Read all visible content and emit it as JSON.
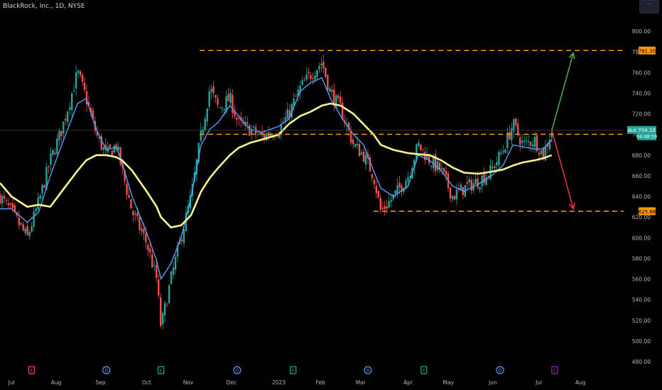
{
  "header": {
    "title": "BlackRock, Inc., 1D, NYSE"
  },
  "ticker": "BLK",
  "price_badge": {
    "symbol": "BLK",
    "price": "704.10",
    "countdown": "04:48:59"
  },
  "level_tags": [
    "781.35",
    "700.26",
    "625.68"
  ],
  "colors": {
    "background": "#000000",
    "up": "#26a69a",
    "down": "#ef5350",
    "ema_fast": "#5b9cf6",
    "ma_slow": "#f8f48c",
    "levels": "#ff9800",
    "arrow_up": "#4caf50",
    "arrow_down": "#f23645",
    "axis_text": "#b2b5be"
  },
  "event_icons": [
    {
      "date": "2022-07-15",
      "kind": "earnings",
      "label": "E"
    },
    {
      "date": "2022-09-05",
      "kind": "dividend",
      "label": "D"
    },
    {
      "date": "2022-10-13",
      "kind": "earnings",
      "label": "E"
    },
    {
      "date": "2022-12-05",
      "kind": "dividend",
      "label": "D"
    },
    {
      "date": "2023-01-13",
      "kind": "earnings",
      "label": "E"
    },
    {
      "date": "2023-03-06",
      "kind": "dividend",
      "label": "D"
    },
    {
      "date": "2023-04-14",
      "kind": "earnings",
      "label": "E"
    },
    {
      "date": "2023-06-06",
      "kind": "dividend",
      "label": "D"
    },
    {
      "date": "2023-07-14",
      "kind": "earnings-upcoming",
      "label": "E"
    }
  ],
  "chart_data": {
    "type": "candlestick",
    "title": "BlackRock, Inc., 1D, NYSE",
    "x_range": [
      "2022-06-23",
      "2023-08-31"
    ],
    "ylim": [
      480,
      820
    ],
    "y_ticks": [
      480,
      500,
      520,
      540,
      560,
      580,
      600,
      620,
      640,
      660,
      680,
      700,
      720,
      740,
      760,
      780,
      800
    ],
    "x_ticks": [
      {
        "date": "2022-07-01",
        "label": "Jul"
      },
      {
        "date": "2022-08-01",
        "label": "Aug"
      },
      {
        "date": "2022-09-01",
        "label": "Sep"
      },
      {
        "date": "2022-10-03",
        "label": "Oct"
      },
      {
        "date": "2022-11-01",
        "label": "Nov"
      },
      {
        "date": "2022-12-01",
        "label": "Dec"
      },
      {
        "date": "2023-01-03",
        "label": "2023"
      },
      {
        "date": "2023-02-01",
        "label": "Feb"
      },
      {
        "date": "2023-03-01",
        "label": "Mar"
      },
      {
        "date": "2023-04-03",
        "label": "Apr"
      },
      {
        "date": "2023-05-01",
        "label": "May"
      },
      {
        "date": "2023-06-01",
        "label": "Jun"
      },
      {
        "date": "2023-07-03",
        "label": "Jul"
      },
      {
        "date": "2023-08-01",
        "label": "Aug"
      }
    ],
    "close_path": [
      [
        "2022-06-23",
        640
      ],
      [
        "2022-07-01",
        625
      ],
      [
        "2022-07-12",
        600
      ],
      [
        "2022-07-20",
        635
      ],
      [
        "2022-07-28",
        675
      ],
      [
        "2022-08-05",
        705
      ],
      [
        "2022-08-16",
        760
      ],
      [
        "2022-08-22",
        735
      ],
      [
        "2022-08-29",
        700
      ],
      [
        "2022-09-05",
        680
      ],
      [
        "2022-09-12",
        690
      ],
      [
        "2022-09-16",
        665
      ],
      [
        "2022-09-23",
        625
      ],
      [
        "2022-10-03",
        595
      ],
      [
        "2022-10-10",
        560
      ],
      [
        "2022-10-13",
        513
      ],
      [
        "2022-10-20",
        560
      ],
      [
        "2022-10-27",
        600
      ],
      [
        "2022-11-03",
        640
      ],
      [
        "2022-11-10",
        700
      ],
      [
        "2022-11-16",
        745
      ],
      [
        "2022-11-22",
        725
      ],
      [
        "2022-11-30",
        735
      ],
      [
        "2022-12-06",
        710
      ],
      [
        "2022-12-14",
        705
      ],
      [
        "2022-12-22",
        698
      ],
      [
        "2023-01-03",
        705
      ],
      [
        "2023-01-10",
        720
      ],
      [
        "2023-01-18",
        745
      ],
      [
        "2023-01-25",
        758
      ],
      [
        "2023-02-02",
        770
      ],
      [
        "2023-02-08",
        740
      ],
      [
        "2023-02-15",
        725
      ],
      [
        "2023-02-24",
        690
      ],
      [
        "2023-03-03",
        680
      ],
      [
        "2023-03-10",
        660
      ],
      [
        "2023-03-15",
        625
      ],
      [
        "2023-03-24",
        640
      ],
      [
        "2023-04-03",
        660
      ],
      [
        "2023-04-10",
        690
      ],
      [
        "2023-04-18",
        675
      ],
      [
        "2023-04-26",
        665
      ],
      [
        "2023-05-04",
        640
      ],
      [
        "2023-05-12",
        648
      ],
      [
        "2023-05-22",
        655
      ],
      [
        "2023-05-31",
        665
      ],
      [
        "2023-06-08",
        685
      ],
      [
        "2023-06-15",
        710
      ],
      [
        "2023-06-22",
        690
      ],
      [
        "2023-06-30",
        695
      ],
      [
        "2023-07-06",
        680
      ],
      [
        "2023-07-12",
        704
      ]
    ],
    "candle_count": 262,
    "series": [
      {
        "name": "EMA",
        "color": "#5b9cf6",
        "values": [
          [
            "2022-06-23",
            628
          ],
          [
            "2022-07-01",
            628
          ],
          [
            "2022-07-12",
            615
          ],
          [
            "2022-07-20",
            625
          ],
          [
            "2022-07-28",
            660
          ],
          [
            "2022-08-05",
            690
          ],
          [
            "2022-08-16",
            730
          ],
          [
            "2022-08-22",
            735
          ],
          [
            "2022-08-29",
            705
          ],
          [
            "2022-09-05",
            685
          ],
          [
            "2022-09-12",
            688
          ],
          [
            "2022-09-16",
            672
          ],
          [
            "2022-09-23",
            640
          ],
          [
            "2022-10-03",
            605
          ],
          [
            "2022-10-10",
            578
          ],
          [
            "2022-10-13",
            560
          ],
          [
            "2022-10-20",
            575
          ],
          [
            "2022-10-27",
            600
          ],
          [
            "2022-11-03",
            640
          ],
          [
            "2022-11-10",
            690
          ],
          [
            "2022-11-16",
            705
          ],
          [
            "2022-11-22",
            712
          ],
          [
            "2022-11-30",
            728
          ],
          [
            "2022-12-06",
            718
          ],
          [
            "2022-12-14",
            705
          ],
          [
            "2022-12-22",
            702
          ],
          [
            "2023-01-03",
            708
          ],
          [
            "2023-01-10",
            715
          ],
          [
            "2023-01-18",
            742
          ],
          [
            "2023-01-25",
            750
          ],
          [
            "2023-02-02",
            755
          ],
          [
            "2023-02-08",
            735
          ],
          [
            "2023-02-15",
            718
          ],
          [
            "2023-02-24",
            700
          ],
          [
            "2023-03-03",
            690
          ],
          [
            "2023-03-10",
            665
          ],
          [
            "2023-03-15",
            648
          ],
          [
            "2023-03-24",
            640
          ],
          [
            "2023-04-03",
            650
          ],
          [
            "2023-04-10",
            680
          ],
          [
            "2023-04-18",
            675
          ],
          [
            "2023-04-26",
            665
          ],
          [
            "2023-05-04",
            650
          ],
          [
            "2023-05-12",
            645
          ],
          [
            "2023-05-22",
            652
          ],
          [
            "2023-05-31",
            660
          ],
          [
            "2023-06-08",
            670
          ],
          [
            "2023-06-15",
            690
          ],
          [
            "2023-06-22",
            688
          ],
          [
            "2023-06-30",
            686
          ],
          [
            "2023-07-06",
            686
          ],
          [
            "2023-07-12",
            695
          ]
        ]
      },
      {
        "name": "SMA",
        "color": "#f8f48c",
        "values": [
          [
            "2022-06-23",
            653
          ],
          [
            "2022-07-01",
            640
          ],
          [
            "2022-07-12",
            630
          ],
          [
            "2022-07-20",
            632
          ],
          [
            "2022-07-28",
            630
          ],
          [
            "2022-08-05",
            645
          ],
          [
            "2022-08-16",
            665
          ],
          [
            "2022-08-22",
            675
          ],
          [
            "2022-08-29",
            680
          ],
          [
            "2022-09-05",
            680
          ],
          [
            "2022-09-12",
            678
          ],
          [
            "2022-09-16",
            675
          ],
          [
            "2022-09-23",
            665
          ],
          [
            "2022-10-03",
            645
          ],
          [
            "2022-10-10",
            630
          ],
          [
            "2022-10-13",
            620
          ],
          [
            "2022-10-20",
            610
          ],
          [
            "2022-10-27",
            612
          ],
          [
            "2022-11-03",
            622
          ],
          [
            "2022-11-10",
            645
          ],
          [
            "2022-11-16",
            658
          ],
          [
            "2022-11-22",
            668
          ],
          [
            "2022-11-30",
            680
          ],
          [
            "2022-12-06",
            687
          ],
          [
            "2022-12-14",
            692
          ],
          [
            "2022-12-22",
            695
          ],
          [
            "2023-01-03",
            700
          ],
          [
            "2023-01-10",
            710
          ],
          [
            "2023-01-18",
            718
          ],
          [
            "2023-01-25",
            722
          ],
          [
            "2023-02-02",
            728
          ],
          [
            "2023-02-08",
            730
          ],
          [
            "2023-02-15",
            728
          ],
          [
            "2023-02-24",
            720
          ],
          [
            "2023-03-03",
            710
          ],
          [
            "2023-03-10",
            700
          ],
          [
            "2023-03-15",
            690
          ],
          [
            "2023-03-24",
            685
          ],
          [
            "2023-04-03",
            682
          ],
          [
            "2023-04-10",
            681
          ],
          [
            "2023-04-18",
            680
          ],
          [
            "2023-04-26",
            675
          ],
          [
            "2023-05-04",
            668
          ],
          [
            "2023-05-12",
            663
          ],
          [
            "2023-05-22",
            662
          ],
          [
            "2023-05-31",
            664
          ],
          [
            "2023-06-08",
            666
          ],
          [
            "2023-06-15",
            670
          ],
          [
            "2023-06-22",
            673
          ],
          [
            "2023-06-30",
            675
          ],
          [
            "2023-07-06",
            677
          ],
          [
            "2023-07-12",
            680
          ]
        ]
      }
    ],
    "horizontal_levels": [
      {
        "price": 781.35,
        "from": "2022-11-09",
        "to": "2023-08-31"
      },
      {
        "price": 700.26,
        "from": "2022-11-09",
        "to": "2023-08-31"
      },
      {
        "price": 625.68,
        "from": "2023-03-10",
        "to": "2023-08-31"
      }
    ],
    "current_price": 704.1,
    "projections": [
      {
        "direction": "up",
        "from": [
          "2023-07-12",
          704
        ],
        "to": [
          "2023-07-27",
          779
        ]
      },
      {
        "direction": "down",
        "from": [
          "2023-07-12",
          704
        ],
        "to": [
          "2023-07-27",
          628
        ]
      }
    ]
  }
}
